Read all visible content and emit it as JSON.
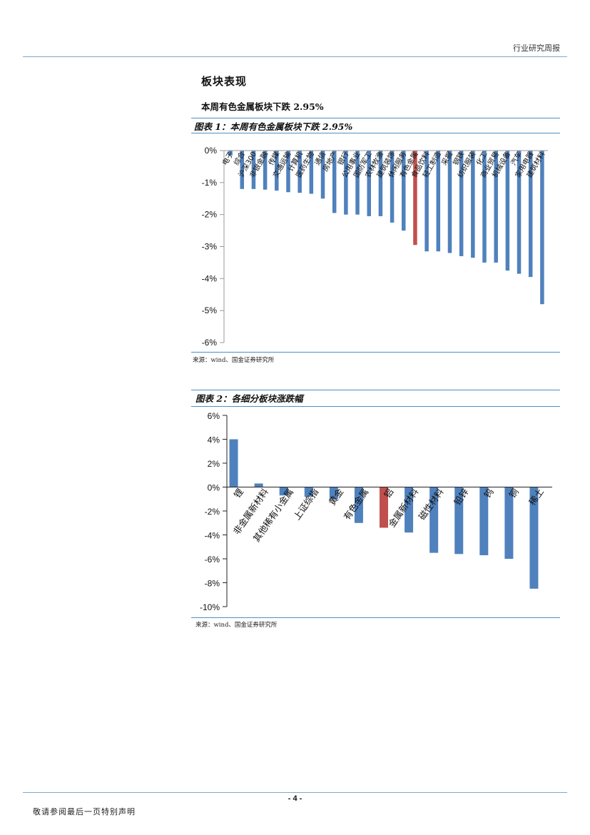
{
  "header": {
    "title": "行业研究周报"
  },
  "section": {
    "title": "板块表现",
    "subtitle": "本周有色金属板块下跌 2.95%"
  },
  "figure1": {
    "title": "图表 1：本周有色金属板块下跌 2.95%",
    "source": "来源：wind、国金证券研究所"
  },
  "figure2": {
    "title": "图表 2：各细分板块涨跌幅",
    "source": "来源：wind、国金证券研究所"
  },
  "footer": {
    "page_number": "- 4 -",
    "disclaimer": "敬请参阅最后一页特别声明"
  },
  "colors": {
    "bar": "#4f81bd",
    "highlight": "#c0504d",
    "accent_line": "#4f8fc4"
  },
  "chart_data": [
    {
      "type": "bar",
      "title": "本周有色金属板块下跌 2.95%",
      "categories": [
        "电子",
        "综合",
        "沪深300",
        "非银金融",
        "传媒",
        "交通运输",
        "计算机",
        "医药生物",
        "通信",
        "房地产",
        "银行",
        "公用事业",
        "国防军工",
        "农林牧渔",
        "建筑装饰",
        "休闲服务",
        "有色金属",
        "食品饮料",
        "轻工制造",
        "采掘",
        "钢铁",
        "纺织服装",
        "化工",
        "商业贸易",
        "机械设备",
        "汽车",
        "家用电器",
        "建筑材料"
      ],
      "values": [
        -0.15,
        -1.2,
        -1.2,
        -1.22,
        -1.25,
        -1.3,
        -1.32,
        -1.35,
        -1.5,
        -1.95,
        -2.0,
        -2.0,
        -2.05,
        -2.05,
        -2.25,
        -2.5,
        -2.95,
        -3.15,
        -3.15,
        -3.2,
        -3.3,
        -3.35,
        -3.5,
        -3.5,
        -3.75,
        -3.85,
        -3.95,
        -4.8
      ],
      "highlight": "有色金属",
      "ylim": [
        -6,
        0
      ],
      "yticks": [
        "0%",
        "-1%",
        "-2%",
        "-3%",
        "-4%",
        "-5%",
        "-6%"
      ],
      "xlabel": "",
      "ylabel": ""
    },
    {
      "type": "bar",
      "title": "各细分板块涨跌幅",
      "categories": [
        "锂",
        "非金属新材料",
        "其他稀有小金属",
        "上证综指",
        "黄金",
        "有色金属",
        "铝",
        "金属新材料",
        "磁性材料",
        "铅锌",
        "钨",
        "铜",
        "稀土"
      ],
      "values": [
        4.0,
        0.3,
        -0.7,
        -0.8,
        -1.0,
        -3.0,
        -3.4,
        -3.8,
        -5.5,
        -5.6,
        -5.7,
        -6.0,
        -8.5
      ],
      "highlight": "铝",
      "ylim": [
        -10,
        6
      ],
      "yticks": [
        "6%",
        "4%",
        "2%",
        "0%",
        "-2%",
        "-4%",
        "-6%",
        "-8%",
        "-10%"
      ],
      "xlabel": "",
      "ylabel": ""
    }
  ]
}
